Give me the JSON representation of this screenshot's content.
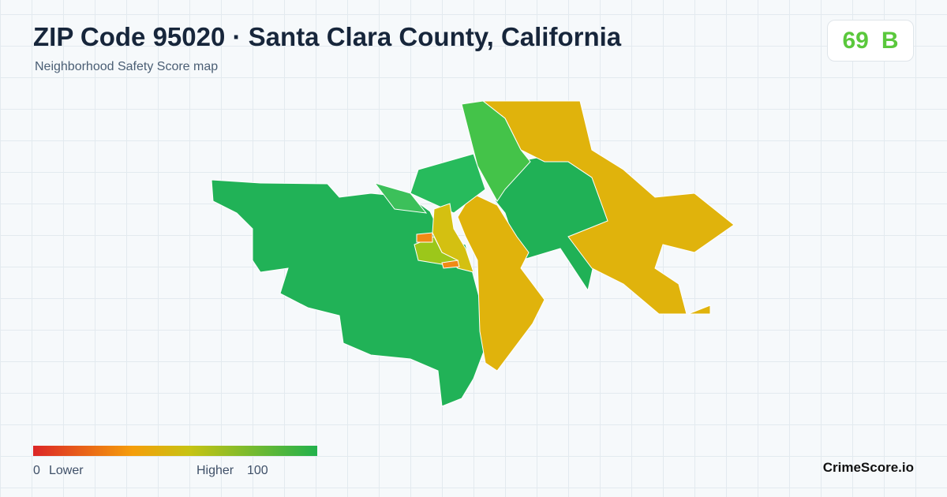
{
  "header": {
    "title": "ZIP Code 95020 · Santa Clara County, California",
    "subtitle": "Neighborhood Safety Score map"
  },
  "score": {
    "value": 69,
    "grade": "B"
  },
  "legend": {
    "min": 0,
    "min_label": "Lower",
    "max_label": "Higher",
    "max": 100
  },
  "brand": "CrimeScore.io"
}
